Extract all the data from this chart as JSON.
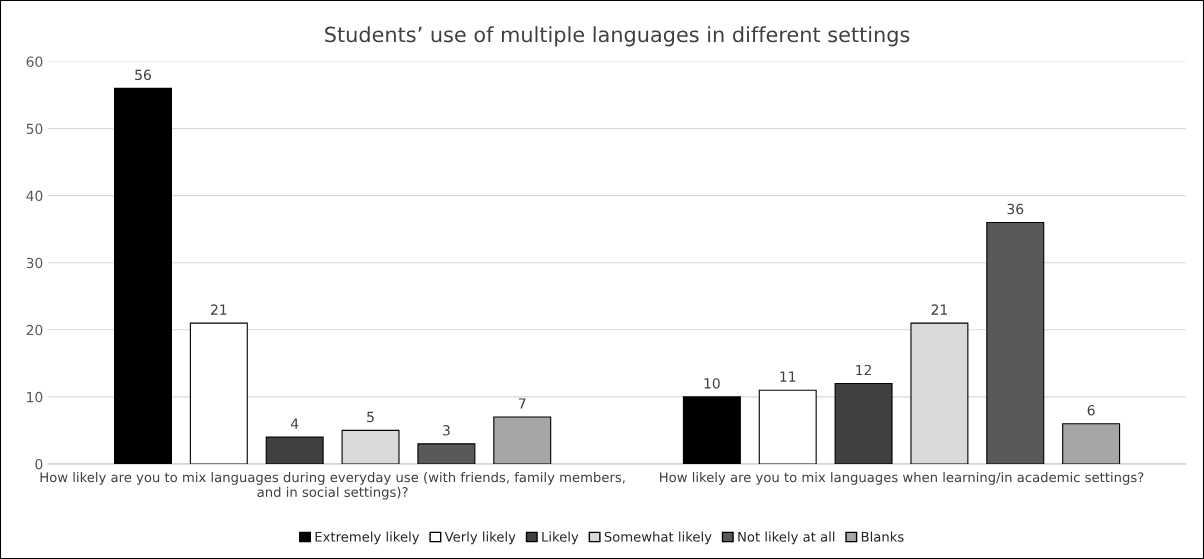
{
  "chart_data": {
    "type": "bar",
    "title": "Students’ use of multiple languages in different settings",
    "categories": [
      "How likely are you to mix languages during everyday use (with friends, family members, and in social settings)?",
      "How likely are you to mix languages when learning/in academic settings?"
    ],
    "series": [
      {
        "name": "Extremely likely",
        "color": "#000000",
        "values": [
          56,
          10
        ]
      },
      {
        "name": "Verly likely",
        "color": "#ffffff",
        "values": [
          21,
          11
        ]
      },
      {
        "name": "Likely",
        "color": "#404040",
        "values": [
          4,
          12
        ]
      },
      {
        "name": "Somewhat likely",
        "color": "#d9d9d9",
        "values": [
          5,
          21
        ]
      },
      {
        "name": "Not likely at all",
        "color": "#595959",
        "values": [
          3,
          36
        ]
      },
      {
        "name": "Blanks",
        "color": "#a6a6a6",
        "values": [
          7,
          6
        ]
      }
    ],
    "ylim": [
      0,
      60
    ],
    "yticks": [
      0,
      10,
      20,
      30,
      40,
      50,
      60
    ],
    "grid": "y",
    "legend": "bottom",
    "data_labels": true
  }
}
